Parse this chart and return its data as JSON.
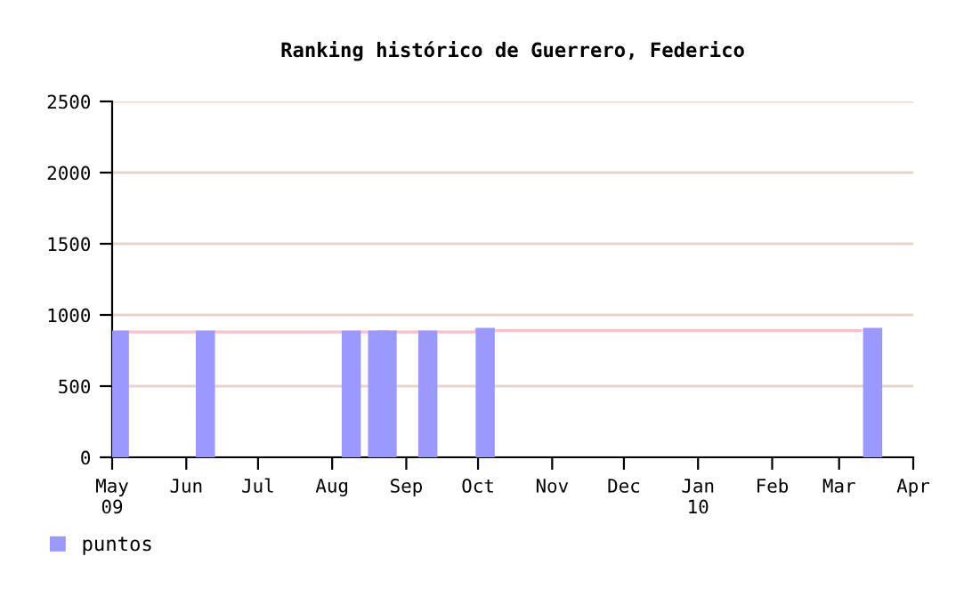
{
  "chart_data": {
    "type": "bar",
    "title": "Ranking histórico de Guerrero, Federico",
    "x": [
      "2009-05-04",
      "2009-06-09",
      "2009-08-09",
      "2009-08-20",
      "2009-08-24",
      "2009-09-10",
      "2009-10-04",
      "2010-03-15"
    ],
    "series": [
      {
        "name": "puntos",
        "color": "#9999ff",
        "values": [
          890,
          890,
          890,
          890,
          890,
          890,
          910,
          910
        ]
      },
      {
        "type": "step",
        "color": "#ffc0cb",
        "x": [
          "2009-05-04",
          "2009-09-30",
          "2010-03-10"
        ],
        "values": [
          880,
          890,
          890
        ]
      }
    ],
    "xlim": [
      "2009-05-01",
      "2010-04-01"
    ],
    "xticks": [
      {
        "value": "2009-05-01",
        "label": "May\n09"
      },
      {
        "value": "2009-06-01",
        "label": "Jun"
      },
      {
        "value": "2009-07-01",
        "label": "Jul"
      },
      {
        "value": "2009-08-01",
        "label": "Aug"
      },
      {
        "value": "2009-09-01",
        "label": "Sep"
      },
      {
        "value": "2009-10-01",
        "label": "Oct"
      },
      {
        "value": "2009-11-01",
        "label": "Nov"
      },
      {
        "value": "2009-12-01",
        "label": "Dec"
      },
      {
        "value": "2010-01-01",
        "label": "Jan\n10"
      },
      {
        "value": "2010-02-01",
        "label": "Feb"
      },
      {
        "value": "2010-03-01",
        "label": "Mar"
      },
      {
        "value": "2010-04-01",
        "label": "Apr"
      }
    ],
    "ylim": [
      0,
      2500
    ],
    "yticks": [
      0,
      500,
      1000,
      1500,
      2000,
      2500
    ],
    "grid": "y",
    "legend": "bottom left"
  }
}
